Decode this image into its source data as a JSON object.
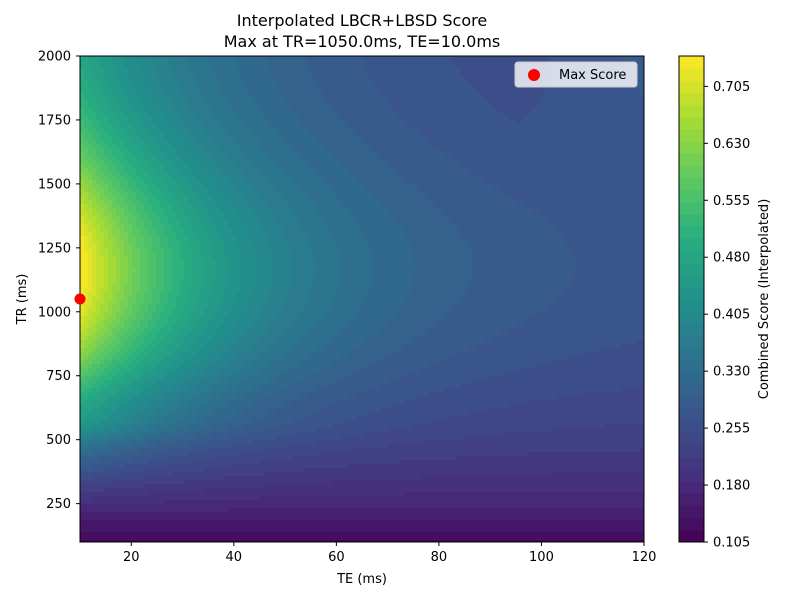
{
  "chart_data": {
    "type": "heatmap",
    "title_line1": "Interpolated LBCR+LBSD Score",
    "title_line2": "Max at TR=1050.0ms, TE=10.0ms",
    "xlabel": "TE (ms)",
    "ylabel": "TR (ms)",
    "xlim": [
      10,
      120
    ],
    "ylim": [
      100,
      2000
    ],
    "xticks": [
      20,
      40,
      60,
      80,
      100,
      120
    ],
    "yticks": [
      250,
      500,
      750,
      1000,
      1250,
      1500,
      1750,
      2000
    ],
    "colorbar_label": "Combined Score (Interpolated)",
    "colorbar_range": [
      0.105,
      0.745
    ],
    "colorbar_ticks": [
      "0.105",
      "0.180",
      "0.255",
      "0.330",
      "0.405",
      "0.480",
      "0.555",
      "0.630",
      "0.705"
    ],
    "colormap": "viridis",
    "max_point": {
      "te": 10.0,
      "tr": 1050.0,
      "color": "#ff0000"
    },
    "legend": {
      "label": "Max Score",
      "position": "top-right"
    },
    "grid": false
  }
}
